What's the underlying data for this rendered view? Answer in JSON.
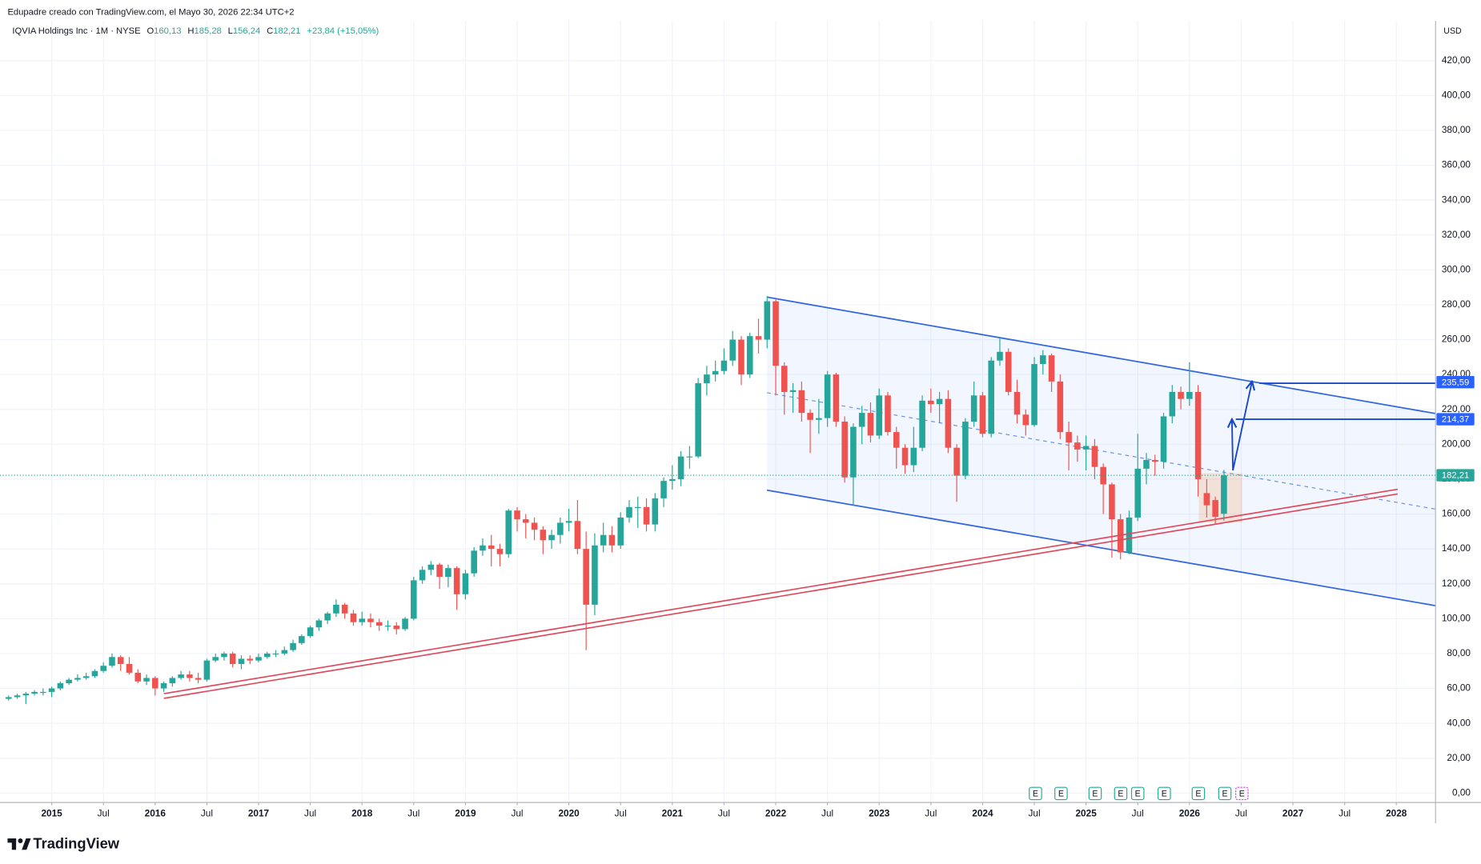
{
  "header": "Edupadre creado con TradingView.com, el Mayo 30, 2026 22:34 UTC+2",
  "legend": {
    "symbol": "IQVIA Holdings Inc · 1M · NYSE",
    "ohlc": [
      {
        "key": "O",
        "text": "160,13"
      },
      {
        "key": "H",
        "text": "185,28"
      },
      {
        "key": "L",
        "text": "156,24"
      },
      {
        "key": "C",
        "text": "182,21"
      }
    ],
    "change": "+23,84 (+15,05%)"
  },
  "earnings_marker": "E",
  "brand": "TradingView",
  "chart_data": {
    "type": "candlestick",
    "currency": "USD",
    "grid": true,
    "up_color": "#26a69a",
    "down_color": "#ef5350",
    "x": [
      "2014-08",
      "2014-09",
      "2014-10",
      "2014-11",
      "2014-12",
      "2015-01",
      "2015-02",
      "2015-03",
      "2015-04",
      "2015-05",
      "2015-06",
      "2015-07",
      "2015-08",
      "2015-09",
      "2015-10",
      "2015-11",
      "2015-12",
      "2016-01",
      "2016-02",
      "2016-03",
      "2016-04",
      "2016-05",
      "2016-06",
      "2016-07",
      "2016-08",
      "2016-09",
      "2016-10",
      "2016-11",
      "2016-12",
      "2017-01",
      "2017-02",
      "2017-03",
      "2017-04",
      "2017-05",
      "2017-06",
      "2017-07",
      "2017-08",
      "2017-09",
      "2017-10",
      "2017-11",
      "2017-12",
      "2018-01",
      "2018-02",
      "2018-03",
      "2018-04",
      "2018-05",
      "2018-06",
      "2018-07",
      "2018-08",
      "2018-09",
      "2018-10",
      "2018-11",
      "2018-12",
      "2019-01",
      "2019-02",
      "2019-03",
      "2019-04",
      "2019-05",
      "2019-06",
      "2019-07",
      "2019-08",
      "2019-09",
      "2019-10",
      "2019-11",
      "2019-12",
      "2020-01",
      "2020-02",
      "2020-03",
      "2020-04",
      "2020-05",
      "2020-06",
      "2020-07",
      "2020-08",
      "2020-09",
      "2020-10",
      "2020-11",
      "2020-12",
      "2021-01",
      "2021-02",
      "2021-03",
      "2021-04",
      "2021-05",
      "2021-06",
      "2021-07",
      "2021-08",
      "2021-09",
      "2021-10",
      "2021-11",
      "2021-12",
      "2022-01",
      "2022-02",
      "2022-03",
      "2022-04",
      "2022-05",
      "2022-06",
      "2022-07",
      "2022-08",
      "2022-09",
      "2022-10",
      "2022-11",
      "2022-12",
      "2023-01",
      "2023-02",
      "2023-03",
      "2023-04",
      "2023-05",
      "2023-06",
      "2023-07",
      "2023-08",
      "2023-09",
      "2023-10",
      "2023-11",
      "2023-12",
      "2024-01",
      "2024-02",
      "2024-03",
      "2024-04",
      "2024-05",
      "2024-06",
      "2024-07",
      "2024-08",
      "2024-09",
      "2024-10",
      "2024-11",
      "2024-12",
      "2025-01",
      "2025-02",
      "2025-03",
      "2025-04",
      "2025-05",
      "2025-06",
      "2025-07",
      "2025-08",
      "2025-09",
      "2025-10",
      "2025-11",
      "2025-12",
      "2026-01",
      "2026-02",
      "2026-03",
      "2026-04",
      "2026-05"
    ],
    "open": [
      54,
      55,
      56,
      57,
      58,
      58,
      60,
      63,
      65,
      66,
      67,
      70,
      73,
      78,
      74,
      69,
      64,
      66,
      60,
      63,
      66,
      68,
      66,
      65,
      76,
      78,
      80,
      74,
      77,
      76,
      78,
      80,
      80,
      82,
      86,
      90,
      95,
      99,
      103,
      108,
      103,
      98,
      100,
      98,
      96,
      96,
      94,
      100,
      122,
      128,
      131,
      124,
      129,
      114,
      126,
      139,
      142,
      140,
      137,
      162,
      157,
      155,
      151,
      145,
      148,
      155,
      156,
      140,
      108,
      142,
      148,
      142,
      158,
      164,
      164,
      154,
      169,
      179,
      180,
      193,
      193,
      235,
      240,
      242,
      248,
      260,
      240,
      262,
      260,
      282,
      245,
      230,
      231,
      218,
      214,
      215,
      240,
      213,
      181,
      210,
      218,
      205,
      228,
      207,
      198,
      188,
      198,
      225,
      223,
      226,
      198,
      182,
      213,
      228,
      206,
      248,
      253,
      230,
      217,
      211,
      246,
      251,
      236,
      207,
      201,
      197,
      199,
      187,
      177,
      157,
      138,
      158,
      186,
      191,
      190,
      216,
      230,
      226,
      230,
      172,
      168,
      160.13
    ],
    "high": [
      56,
      57,
      58,
      59,
      60,
      61,
      64,
      66,
      68,
      69,
      71,
      75,
      80,
      79,
      78,
      71,
      68,
      67,
      64,
      67,
      70,
      70,
      69,
      77,
      80,
      81,
      81,
      79,
      79,
      80,
      81,
      82,
      84,
      88,
      91,
      96,
      100,
      104,
      111,
      109,
      105,
      104,
      103,
      100,
      99,
      98,
      101,
      124,
      130,
      133,
      132,
      131,
      130,
      128,
      141,
      146,
      148,
      143,
      163,
      164,
      160,
      158,
      153,
      151,
      158,
      163,
      168,
      150,
      149,
      155,
      153,
      161,
      168,
      170,
      169,
      172,
      181,
      188,
      196,
      199,
      238,
      245,
      248,
      255,
      265,
      262,
      264,
      272,
      285,
      283,
      247,
      235,
      236,
      220,
      226,
      242,
      241,
      216,
      212,
      222,
      224,
      232,
      230,
      210,
      200,
      210,
      228,
      232,
      230,
      231,
      200,
      215,
      236,
      230,
      250,
      261,
      255,
      237,
      220,
      250,
      254,
      252,
      240,
      213,
      205,
      205,
      203,
      189,
      178,
      160,
      162,
      206,
      195,
      194,
      218,
      234,
      233,
      247,
      234,
      180,
      170,
      185.28
    ],
    "low": [
      53,
      54,
      51,
      56,
      56,
      55,
      59,
      62,
      64,
      65,
      66,
      69,
      72,
      70,
      68,
      63,
      62,
      56,
      58,
      61,
      65,
      64,
      63,
      64,
      75,
      76,
      72,
      71,
      74,
      75,
      77,
      78,
      79,
      81,
      85,
      89,
      93,
      97,
      101,
      100,
      96,
      96,
      95,
      93,
      93,
      91,
      93,
      99,
      120,
      125,
      117,
      118,
      105,
      111,
      124,
      136,
      130,
      130,
      135,
      150,
      146,
      145,
      137,
      140,
      143,
      150,
      137,
      82,
      102,
      138,
      138,
      140,
      155,
      152,
      150,
      150,
      164,
      174,
      176,
      186,
      192,
      228,
      236,
      240,
      245,
      234,
      238,
      252,
      255,
      228,
      217,
      218,
      213,
      195,
      206,
      210,
      210,
      178,
      165,
      200,
      201,
      203,
      205,
      186,
      183,
      184,
      196,
      218,
      212,
      195,
      167,
      180,
      210,
      204,
      204,
      245,
      228,
      212,
      205,
      210,
      240,
      230,
      203,
      185,
      190,
      185,
      180,
      160,
      135,
      134,
      137,
      156,
      177,
      182,
      186,
      212,
      220,
      222,
      170,
      158,
      154,
      156.24
    ],
    "close": [
      55,
      56,
      57,
      58,
      58,
      60,
      63,
      65,
      66,
      67,
      70,
      73,
      78,
      74,
      69,
      64,
      66,
      60,
      63,
      66,
      68,
      66,
      65,
      76,
      78,
      80,
      74,
      77,
      76,
      78,
      80,
      80,
      82,
      86,
      90,
      95,
      99,
      103,
      108,
      103,
      98,
      100,
      98,
      96,
      96,
      94,
      100,
      122,
      128,
      131,
      124,
      129,
      114,
      126,
      139,
      142,
      140,
      137,
      162,
      157,
      155,
      151,
      145,
      148,
      155,
      156,
      140,
      108,
      142,
      148,
      142,
      158,
      164,
      164,
      154,
      169,
      179,
      180,
      193,
      193,
      235,
      240,
      242,
      248,
      260,
      240,
      262,
      260,
      282,
      245,
      230,
      231,
      218,
      214,
      215,
      240,
      213,
      181,
      210,
      218,
      205,
      228,
      207,
      198,
      188,
      198,
      225,
      223,
      226,
      198,
      182,
      213,
      228,
      206,
      248,
      253,
      230,
      217,
      211,
      246,
      251,
      236,
      207,
      201,
      197,
      199,
      187,
      177,
      157,
      138,
      158,
      186,
      191,
      190,
      216,
      230,
      226,
      230,
      180,
      165,
      158.37,
      182.21
    ],
    "xlim": [
      "2014-07",
      "2028-05"
    ],
    "xticks": [
      {
        "value": "2015-01",
        "label": "2015"
      },
      {
        "value": "2015-07",
        "label": "Jul"
      },
      {
        "value": "2016-01",
        "label": "2016"
      },
      {
        "value": "2016-07",
        "label": "Jul"
      },
      {
        "value": "2017-01",
        "label": "2017"
      },
      {
        "value": "2017-07",
        "label": "Jul"
      },
      {
        "value": "2018-01",
        "label": "2018"
      },
      {
        "value": "2018-07",
        "label": "Jul"
      },
      {
        "value": "2019-01",
        "label": "2019"
      },
      {
        "value": "2019-07",
        "label": "Jul"
      },
      {
        "value": "2020-01",
        "label": "2020"
      },
      {
        "value": "2020-07",
        "label": "Jul"
      },
      {
        "value": "2021-01",
        "label": "2021"
      },
      {
        "value": "2021-07",
        "label": "Jul"
      },
      {
        "value": "2022-01",
        "label": "2022"
      },
      {
        "value": "2022-07",
        "label": "Jul"
      },
      {
        "value": "2023-01",
        "label": "2023"
      },
      {
        "value": "2023-07",
        "label": "Jul"
      },
      {
        "value": "2024-01",
        "label": "2024"
      },
      {
        "value": "2024-07",
        "label": "Jul"
      },
      {
        "value": "2025-01",
        "label": "2025"
      },
      {
        "value": "2025-07",
        "label": "Jul"
      },
      {
        "value": "2026-01",
        "label": "2026"
      },
      {
        "value": "2026-07",
        "label": "Jul"
      },
      {
        "value": "2027-01",
        "label": "2027"
      },
      {
        "value": "2027-07",
        "label": "Jul"
      },
      {
        "value": "2028-01",
        "label": "2028"
      }
    ],
    "ylim": [
      -5.4,
      442.8
    ],
    "yticks": [
      {
        "value": 0,
        "label": "0,00"
      },
      {
        "value": 20,
        "label": "20,00"
      },
      {
        "value": 40,
        "label": "40,00"
      },
      {
        "value": 60,
        "label": "60,00"
      },
      {
        "value": 80,
        "label": "80,00"
      },
      {
        "value": 100,
        "label": "100,00"
      },
      {
        "value": 120,
        "label": "120,00"
      },
      {
        "value": 140,
        "label": "140,00"
      },
      {
        "value": 160,
        "label": "160,00"
      },
      {
        "value": 180,
        "label": "180,00"
      },
      {
        "value": 200,
        "label": "200,00"
      },
      {
        "value": 220,
        "label": "220,00"
      },
      {
        "value": 240,
        "label": "240,00"
      },
      {
        "value": 260,
        "label": "260,00"
      },
      {
        "value": 280,
        "label": "280,00"
      },
      {
        "value": 300,
        "label": "300,00"
      },
      {
        "value": 320,
        "label": "320,00"
      },
      {
        "value": 340,
        "label": "340,00"
      },
      {
        "value": 360,
        "label": "360,00"
      },
      {
        "value": 380,
        "label": "380,00"
      },
      {
        "value": 400,
        "label": "400,00"
      },
      {
        "value": 420,
        "label": "420,00"
      }
    ],
    "last_price": {
      "value": 182.21,
      "label": "182,21"
    },
    "price_labels": [
      {
        "value": 235.59,
        "label": "235,59"
      },
      {
        "value": 214.37,
        "label": "214,37"
      }
    ]
  }
}
